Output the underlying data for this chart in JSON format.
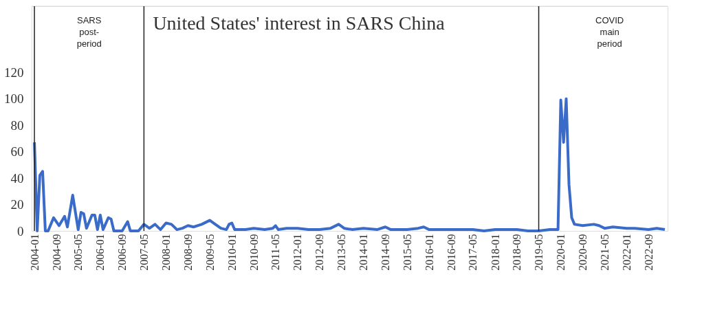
{
  "chart_data": {
    "type": "line",
    "title": "United States' interest in SARS China",
    "annotations": [
      "SARS post-period",
      "COVID main period"
    ],
    "x": [
      "2004-01",
      "2004-02",
      "2004-03",
      "2004-04",
      "2004-05",
      "2004-06",
      "2004-08",
      "2004-10",
      "2004-12",
      "2005-01",
      "2005-03",
      "2005-05",
      "2005-06",
      "2005-07",
      "2005-08",
      "2005-10",
      "2005-11",
      "2005-12",
      "2006-01",
      "2006-02",
      "2006-04",
      "2006-05",
      "2006-06",
      "2006-09",
      "2006-11",
      "2006-12",
      "2007-03",
      "2007-05",
      "2007-07",
      "2007-09",
      "2007-11",
      "2008-01",
      "2008-03",
      "2008-05",
      "2008-07",
      "2008-09",
      "2008-11",
      "2009-02",
      "2009-05",
      "2009-07",
      "2009-09",
      "2009-11",
      "2009-12",
      "2010-01",
      "2010-02",
      "2010-06",
      "2010-09",
      "2011-01",
      "2011-04",
      "2011-05",
      "2011-06",
      "2011-09",
      "2012-01",
      "2012-05",
      "2012-09",
      "2013-01",
      "2013-04",
      "2013-06",
      "2013-09",
      "2014-01",
      "2014-06",
      "2014-09",
      "2014-11",
      "2015-05",
      "2015-09",
      "2015-11",
      "2016-01",
      "2016-09",
      "2017-05",
      "2017-09",
      "2018-01",
      "2018-06",
      "2018-09",
      "2019-01",
      "2019-05",
      "2019-09",
      "2019-12",
      "2020-01",
      "2020-02",
      "2020-03",
      "2020-04",
      "2020-05",
      "2020-06",
      "2020-09",
      "2021-01",
      "2021-03",
      "2021-05",
      "2021-08",
      "2022-01",
      "2022-04",
      "2022-09",
      "2022-12",
      "2023-03"
    ],
    "series": [
      {
        "color": "#3a6bc9",
        "values": [
          67,
          0,
          42,
          45,
          0,
          0,
          10,
          4,
          11,
          3,
          27,
          1,
          14,
          13,
          2,
          12,
          12,
          1,
          12,
          1,
          10,
          9,
          0,
          0,
          7,
          0,
          0,
          5,
          2,
          5,
          1,
          6,
          5,
          1,
          2,
          4,
          3,
          5,
          8,
          5,
          2,
          1,
          5,
          6,
          1,
          1,
          2,
          1,
          2,
          4,
          1,
          2,
          2,
          1,
          1,
          2,
          5,
          2,
          1,
          2,
          1,
          3,
          1,
          1,
          2,
          3,
          1,
          1,
          1,
          0,
          1,
          1,
          1,
          0,
          0,
          1,
          1,
          99,
          67,
          100,
          35,
          10,
          5,
          4,
          5,
          4,
          2,
          3,
          2,
          2,
          1,
          2,
          1
        ]
      }
    ],
    "xlim": [
      "2003-12",
      "2023-04"
    ],
    "xticks": [
      {
        "value": "2004-01",
        "label": "2004-01"
      },
      {
        "value": "2004-09",
        "label": "2004-09"
      },
      {
        "value": "2005-05",
        "label": "2005-05"
      },
      {
        "value": "2006-01",
        "label": "2006-01"
      },
      {
        "value": "2006-09",
        "label": "2006-09"
      },
      {
        "value": "2007-05",
        "label": "2007-05"
      },
      {
        "value": "2008-01",
        "label": "2008-01"
      },
      {
        "value": "2008-09",
        "label": "2008-09"
      },
      {
        "value": "2009-05",
        "label": "2009-05"
      },
      {
        "value": "2010-01",
        "label": "2010-01"
      },
      {
        "value": "2010-09",
        "label": "2010-09"
      },
      {
        "value": "2011-05",
        "label": "2011-05"
      },
      {
        "value": "2012-01",
        "label": "2012-01"
      },
      {
        "value": "2012-09",
        "label": "2012-09"
      },
      {
        "value": "2013-05",
        "label": "2013-05"
      },
      {
        "value": "2014-01",
        "label": "2014-01"
      },
      {
        "value": "2014-09",
        "label": "2014-09"
      },
      {
        "value": "2015-05",
        "label": "2015-05"
      },
      {
        "value": "2016-01",
        "label": "2016-01"
      },
      {
        "value": "2016-09",
        "label": "2016-09"
      },
      {
        "value": "2017-05",
        "label": "2017-05"
      },
      {
        "value": "2018-01",
        "label": "2018-01"
      },
      {
        "value": "2018-09",
        "label": "2018-09"
      },
      {
        "value": "2019-05",
        "label": "2019-05"
      },
      {
        "value": "2020-01",
        "label": "2020-01"
      },
      {
        "value": "2020-09",
        "label": "2020-09"
      },
      {
        "value": "2021-05",
        "label": "2021-05"
      },
      {
        "value": "2022-01",
        "label": "2022-01"
      },
      {
        "value": "2022-09",
        "label": "2022-09"
      }
    ],
    "ylim": [
      0,
      170
    ],
    "yticks": [
      0,
      20,
      40,
      60,
      80,
      100,
      120
    ],
    "ref_lines": [
      {
        "axis": "x",
        "value": "2004-01",
        "label": null,
        "color": "#222222"
      },
      {
        "axis": "x",
        "value": "2007-05",
        "label": null,
        "color": "#222222"
      },
      {
        "axis": "x",
        "value": "2019-05",
        "label": null,
        "color": "#222222"
      }
    ],
    "grid": false,
    "marker": "none",
    "line_style": "solid"
  }
}
